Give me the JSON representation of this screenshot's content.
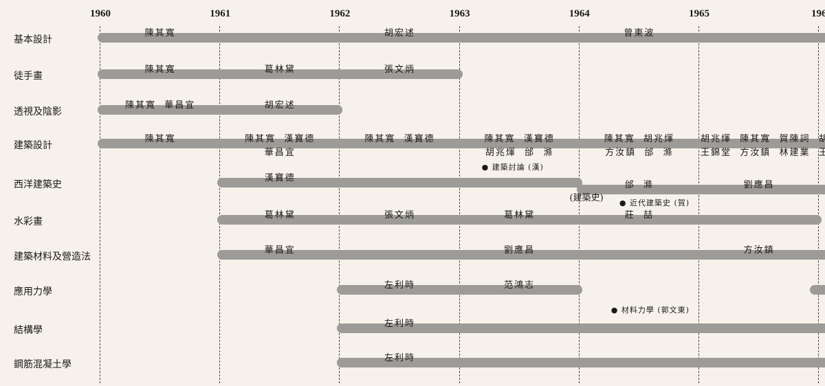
{
  "years": [
    "1960",
    "1961",
    "1962",
    "1963",
    "1964",
    "1965",
    "196"
  ],
  "colors": {
    "background": "#f6f1ea",
    "bar": "#9c9b97",
    "text": "#1a1a1a"
  },
  "rows": [
    {
      "course": "基本設計",
      "bars": [
        {
          "from": 1960,
          "to": 1966.2
        }
      ],
      "labels": [
        {
          "text": "陳其寬",
          "from": 1960,
          "to": 1961
        },
        {
          "text": "胡宏述",
          "from": 1962,
          "to": 1963
        },
        {
          "text": "曾東波",
          "from": 1964,
          "to": 1965
        }
      ]
    },
    {
      "course": "徒手畫",
      "bars": [
        {
          "from": 1960,
          "to": 1963
        }
      ],
      "labels": [
        {
          "text": "陳其寬",
          "from": 1960,
          "to": 1961
        },
        {
          "text": "葛林黛",
          "from": 1961,
          "to": 1962
        },
        {
          "text": "張文炳",
          "from": 1962,
          "to": 1963
        }
      ]
    },
    {
      "course": "透視及陰影",
      "bars": [
        {
          "from": 1960,
          "to": 1962
        }
      ],
      "labels": [
        {
          "text": "陳其寬  華昌宜",
          "from": 1960,
          "to": 1961
        },
        {
          "text": "胡宏述",
          "from": 1961,
          "to": 1962
        }
      ]
    },
    {
      "course": "建築設計",
      "bars": [
        {
          "from": 1960,
          "to": 1966.2
        }
      ],
      "labels": [
        {
          "text": "陳其寬",
          "from": 1960,
          "to": 1961
        },
        {
          "text": "陳其寬  漢寶德\n華昌宜",
          "from": 1961,
          "to": 1962
        },
        {
          "text": "陳其寬  漢寶德",
          "from": 1962,
          "to": 1963
        },
        {
          "text": "陳其寬  漢寶德\n胡兆煇  邰  滌",
          "from": 1963,
          "to": 1964
        },
        {
          "text": "陳其寬  胡兆煇\n方汝鎮  邰  滌",
          "from": 1964,
          "to": 1965
        },
        {
          "text": "胡兆煇  陳其寬  賀陳詞  胡\n王錦堂  方汝鎮  林建業  王",
          "from": 1965,
          "to": 1966.2,
          "align": "left"
        }
      ],
      "notes": [
        {
          "text": "● 建築討論 (漢)",
          "at": 1963
        }
      ]
    },
    {
      "course": "西洋建築史",
      "bars": [
        {
          "from": 1961,
          "to": 1964
        },
        {
          "from": 1964,
          "to": 1966.2,
          "lower": true
        }
      ],
      "labels": [
        {
          "text": "漢寶德",
          "from": 1961,
          "to": 1962
        },
        {
          "text": "邰  滌",
          "from": 1964,
          "to": 1965,
          "lower": true
        },
        {
          "text": "劉應昌",
          "from": 1965,
          "to": 1966,
          "lower": true
        }
      ],
      "notes": [
        {
          "text": "(建築史)",
          "at": 1963.7,
          "y": "sub"
        },
        {
          "text": "● 近代建築史 (賀)",
          "at": 1964.15,
          "y": "sub2"
        }
      ]
    },
    {
      "course": "水彩畫",
      "bars": [
        {
          "from": 1961,
          "to": 1966
        }
      ],
      "labels": [
        {
          "text": "葛林黛",
          "from": 1961,
          "to": 1962
        },
        {
          "text": "張文炳",
          "from": 1962,
          "to": 1963
        },
        {
          "text": "葛林黛",
          "from": 1963,
          "to": 1964
        },
        {
          "text": "莊  喆",
          "from": 1964,
          "to": 1965
        }
      ]
    },
    {
      "course": "建築材料及營造法",
      "bars": [
        {
          "from": 1961,
          "to": 1966.2
        }
      ],
      "labels": [
        {
          "text": "華昌宜",
          "from": 1961,
          "to": 1962
        },
        {
          "text": "劉應昌",
          "from": 1963,
          "to": 1964
        },
        {
          "text": "方汝鎮",
          "from": 1965,
          "to": 1966
        }
      ]
    },
    {
      "course": "應用力學",
      "bars": [
        {
          "from": 1962,
          "to": 1964
        },
        {
          "from": 1965.95,
          "to": 1966.2
        }
      ],
      "labels": [
        {
          "text": "左利時",
          "from": 1962,
          "to": 1963
        },
        {
          "text": "范鴻志",
          "from": 1963,
          "to": 1964
        }
      ],
      "notes": [
        {
          "text": "● 材料力學 (郭文東)",
          "at": 1964.08,
          "y": "sub3"
        }
      ]
    },
    {
      "course": "結構學",
      "bars": [
        {
          "from": 1962,
          "to": 1966.2
        }
      ],
      "labels": [
        {
          "text": "左利時",
          "from": 1962,
          "to": 1963
        }
      ]
    },
    {
      "course": "鋼筋混凝土學",
      "bars": [
        {
          "from": 1962,
          "to": 1966.2
        }
      ],
      "labels": [
        {
          "text": "左利時",
          "from": 1962,
          "to": 1963
        }
      ]
    }
  ]
}
